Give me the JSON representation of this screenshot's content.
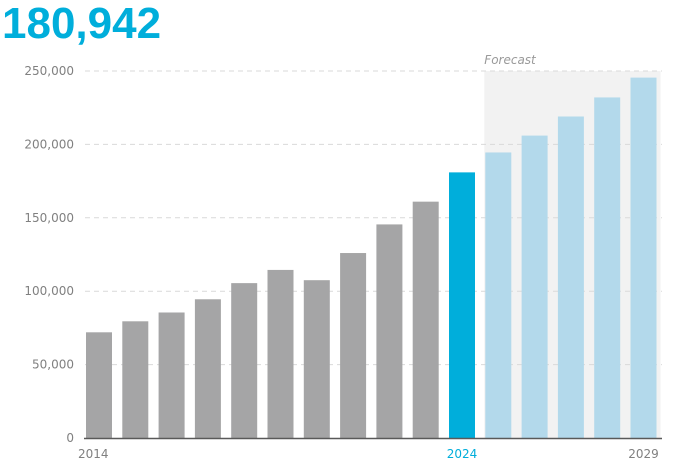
{
  "headline": {
    "value": "180,942",
    "color": "#00AEDB"
  },
  "colors": {
    "historical": "#A5A5A6",
    "current": "#00AEDB",
    "forecast": "#B3D9EB",
    "forecast_band": "#F2F2F2",
    "grid": "#D9D9D9",
    "axis": "#595959",
    "tick_text": "#808080"
  },
  "chart_data": {
    "type": "bar",
    "title": "",
    "xlabel": "",
    "ylabel": "",
    "ylim": [
      0,
      250000
    ],
    "yticks": [
      0,
      50000,
      100000,
      150000,
      200000,
      250000
    ],
    "ytick_labels": [
      "0",
      "50,000",
      "100,000",
      "150,000",
      "200,000",
      "250,000"
    ],
    "grid": true,
    "categories": [
      "2014",
      "2015",
      "2016",
      "2017",
      "2018",
      "2019",
      "2020",
      "2021",
      "2022",
      "2023",
      "2024",
      "2025",
      "2026",
      "2027",
      "2028",
      "2029"
    ],
    "labeled_categories": [
      "2014",
      "2024",
      "2029"
    ],
    "values": [
      72000,
      79500,
      85500,
      94500,
      105500,
      114500,
      107500,
      126000,
      145500,
      161000,
      180942,
      194500,
      206000,
      219000,
      232000,
      245500
    ],
    "segments": [
      "historical",
      "historical",
      "historical",
      "historical",
      "historical",
      "historical",
      "historical",
      "historical",
      "historical",
      "historical",
      "current",
      "forecast",
      "forecast",
      "forecast",
      "forecast",
      "forecast"
    ],
    "forecast_label": "Forecast",
    "forecast_start": "2025",
    "forecast_end": "2029"
  }
}
